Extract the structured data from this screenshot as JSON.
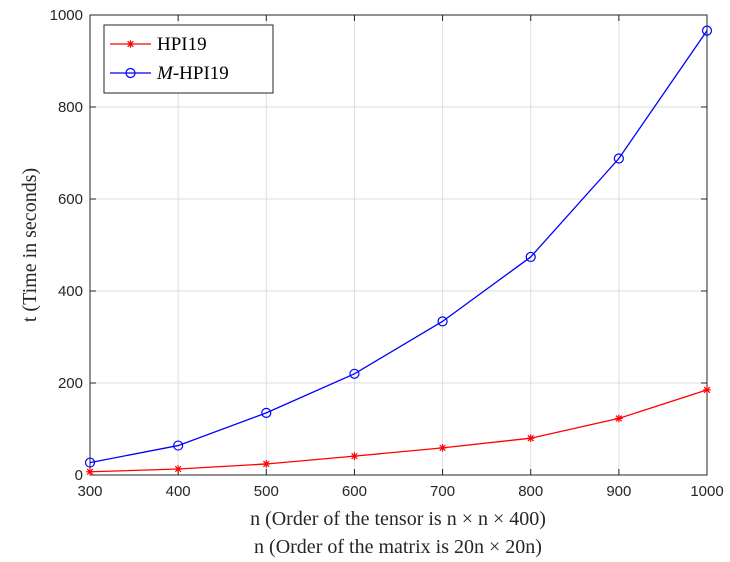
{
  "chart_data": {
    "type": "line",
    "title": "",
    "x": [
      300,
      400,
      500,
      600,
      700,
      800,
      900,
      1000
    ],
    "xlim": [
      300,
      1000
    ],
    "ylim": [
      0,
      1000
    ],
    "xticks": [
      300,
      400,
      500,
      600,
      700,
      800,
      900,
      1000
    ],
    "yticks": [
      0,
      200,
      400,
      600,
      800,
      1000
    ],
    "xlabel_line1": "n (Order of the tensor is n × n × 400)",
    "xlabel_line2": "n (Order of the matrix is 20n × 20n)",
    "ylabel": "t (Time in seconds)",
    "legend_position": "top-left",
    "grid": true,
    "series": [
      {
        "name": "HPI19",
        "color": "#ff0000",
        "marker": "asterisk",
        "values": [
          7,
          13,
          24,
          41,
          59,
          80,
          123,
          185
        ]
      },
      {
        "name": "M-HPI19",
        "color": "#0000ff",
        "marker": "circle",
        "values": [
          27,
          64,
          135,
          220,
          334,
          474,
          688,
          966
        ]
      }
    ]
  }
}
